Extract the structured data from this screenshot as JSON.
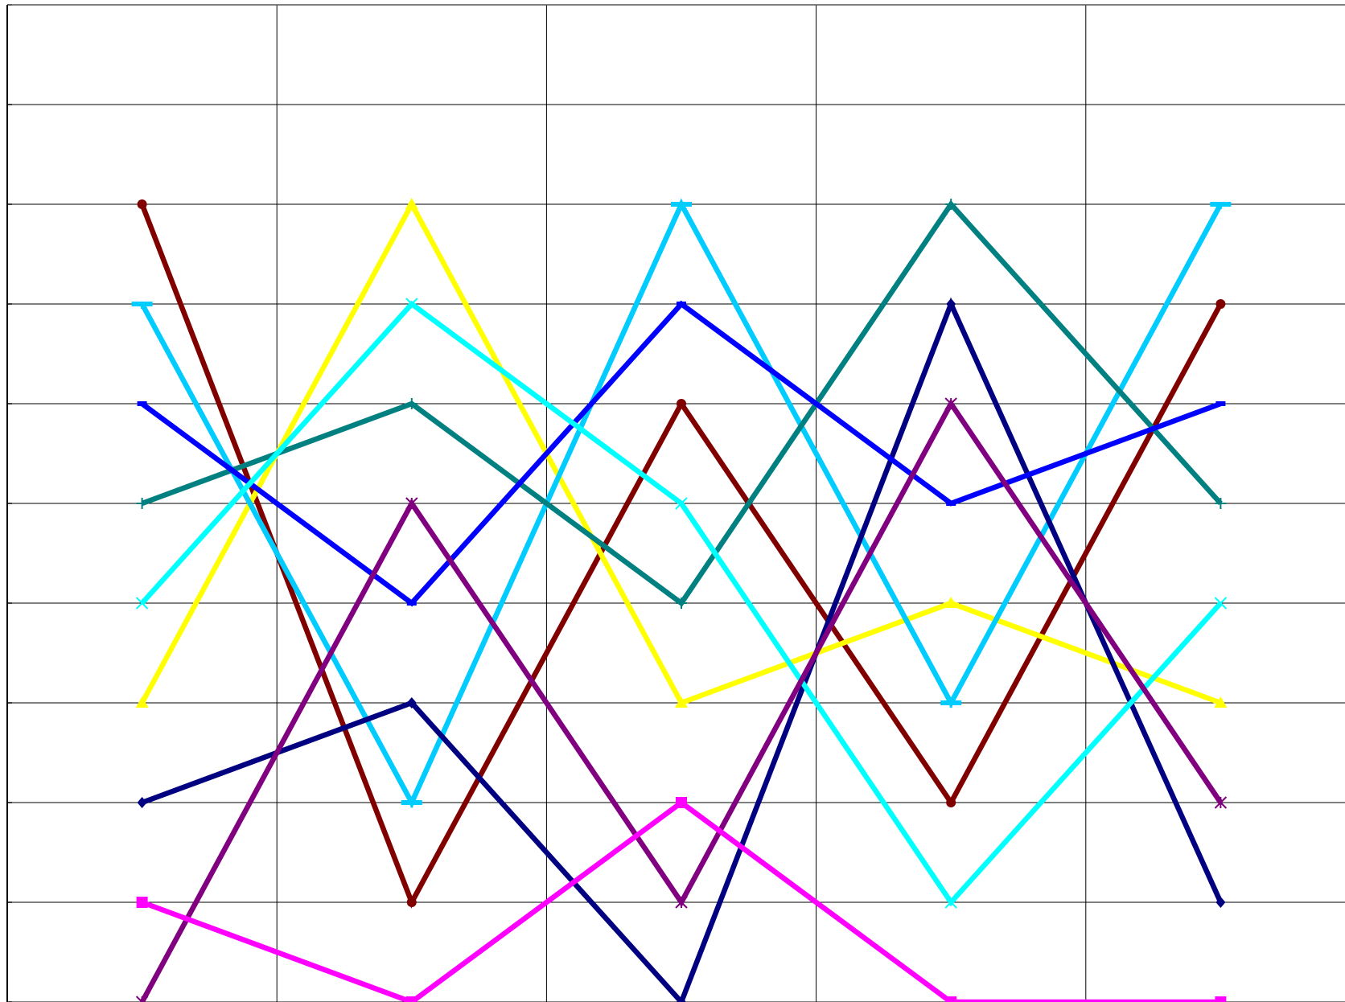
{
  "chart_data": {
    "type": "line",
    "title": "",
    "xlabel": "",
    "ylabel": "",
    "x": [
      1,
      2,
      3,
      4,
      5
    ],
    "xlim": [
      0.5,
      5.5
    ],
    "ylim": [
      0,
      10
    ],
    "grid": true,
    "legend": "none",
    "series": [
      {
        "color": "#800000",
        "marker": "circle",
        "values": [
          9,
          2,
          7,
          3,
          8
        ]
      },
      {
        "color": "#FFFF00",
        "marker": "triangle",
        "values": [
          4,
          9,
          4,
          5,
          4
        ]
      },
      {
        "color": "#00CCFF",
        "marker": "tee",
        "values": [
          8,
          3,
          9,
          4,
          9
        ]
      },
      {
        "color": "#008080",
        "marker": "plus",
        "values": [
          6,
          7,
          5,
          9,
          6
        ]
      },
      {
        "color": "#000080",
        "marker": "diamond",
        "values": [
          3,
          4,
          1,
          8,
          2
        ]
      },
      {
        "color": "#0000FF",
        "marker": "dash",
        "values": [
          7,
          5,
          8,
          6,
          7
        ]
      },
      {
        "color": "#00FFFF",
        "marker": "x",
        "values": [
          5,
          8,
          6,
          2,
          5
        ]
      },
      {
        "color": "#800080",
        "marker": "star",
        "values": [
          1,
          6,
          2,
          7,
          3
        ]
      },
      {
        "color": "#FF00FF",
        "marker": "square",
        "values": [
          2,
          1,
          3,
          1,
          1
        ]
      }
    ]
  }
}
